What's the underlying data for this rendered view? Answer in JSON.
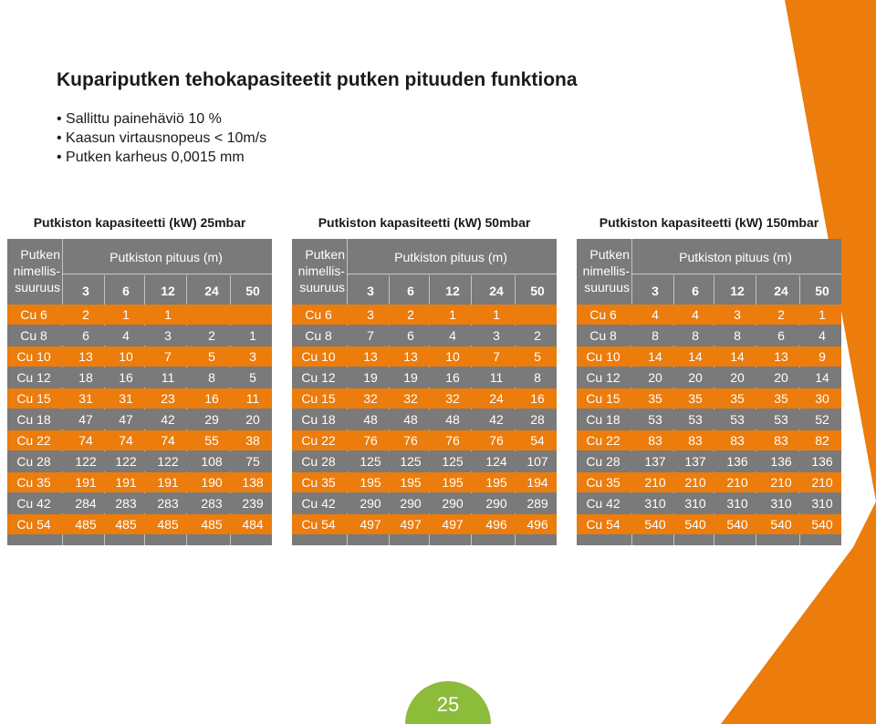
{
  "heading": "Kupariputken tehokapasiteetit putken pituuden funktiona",
  "bullets": [
    "Sallittu painehäviö 10 %",
    "Kaasun virtausnopeus < 10m/s",
    "Putken karheus 0,0015 mm"
  ],
  "colors": {
    "orange": "#ec7c0b",
    "gray": "#7a7a7a",
    "green": "#8dbb3a"
  },
  "page_number": "25",
  "tables": [
    {
      "title": "Putkiston kapasiteetti (kW) 25mbar",
      "name_header": [
        "Putken",
        "nimellis-",
        "suuruus"
      ],
      "length_header": "Putkiston pituus (m)",
      "lengths": [
        "3",
        "6",
        "12",
        "24",
        "50"
      ],
      "rows": [
        {
          "size": "Cu 6",
          "v": [
            "2",
            "1",
            "1",
            "",
            ""
          ]
        },
        {
          "size": "Cu 8",
          "v": [
            "6",
            "4",
            "3",
            "2",
            "1"
          ]
        },
        {
          "size": "Cu 10",
          "v": [
            "13",
            "10",
            "7",
            "5",
            "3"
          ]
        },
        {
          "size": "Cu 12",
          "v": [
            "18",
            "16",
            "11",
            "8",
            "5"
          ]
        },
        {
          "size": "Cu 15",
          "v": [
            "31",
            "31",
            "23",
            "16",
            "11"
          ]
        },
        {
          "size": "Cu 18",
          "v": [
            "47",
            "47",
            "42",
            "29",
            "20"
          ]
        },
        {
          "size": "Cu 22",
          "v": [
            "74",
            "74",
            "74",
            "55",
            "38"
          ]
        },
        {
          "size": "Cu 28",
          "v": [
            "122",
            "122",
            "122",
            "108",
            "75"
          ]
        },
        {
          "size": "Cu 35",
          "v": [
            "191",
            "191",
            "191",
            "190",
            "138"
          ]
        },
        {
          "size": "Cu 42",
          "v": [
            "284",
            "283",
            "283",
            "283",
            "239"
          ]
        },
        {
          "size": "Cu 54",
          "v": [
            "485",
            "485",
            "485",
            "485",
            "484"
          ]
        }
      ]
    },
    {
      "title": "Putkiston kapasiteetti (kW) 50mbar",
      "name_header": [
        "Putken",
        "nimellis-",
        "suuruus"
      ],
      "length_header": "Putkiston pituus (m)",
      "lengths": [
        "3",
        "6",
        "12",
        "24",
        "50"
      ],
      "rows": [
        {
          "size": "Cu 6",
          "v": [
            "3",
            "2",
            "1",
            "1",
            ""
          ]
        },
        {
          "size": "Cu 8",
          "v": [
            "7",
            "6",
            "4",
            "3",
            "2"
          ]
        },
        {
          "size": "Cu 10",
          "v": [
            "13",
            "13",
            "10",
            "7",
            "5"
          ]
        },
        {
          "size": "Cu 12",
          "v": [
            "19",
            "19",
            "16",
            "11",
            "8"
          ]
        },
        {
          "size": "Cu 15",
          "v": [
            "32",
            "32",
            "32",
            "24",
            "16"
          ]
        },
        {
          "size": "Cu 18",
          "v": [
            "48",
            "48",
            "48",
            "42",
            "28"
          ]
        },
        {
          "size": "Cu 22",
          "v": [
            "76",
            "76",
            "76",
            "76",
            "54"
          ]
        },
        {
          "size": "Cu 28",
          "v": [
            "125",
            "125",
            "125",
            "124",
            "107"
          ]
        },
        {
          "size": "Cu 35",
          "v": [
            "195",
            "195",
            "195",
            "195",
            "194"
          ]
        },
        {
          "size": "Cu 42",
          "v": [
            "290",
            "290",
            "290",
            "290",
            "289"
          ]
        },
        {
          "size": "Cu 54",
          "v": [
            "497",
            "497",
            "497",
            "496",
            "496"
          ]
        }
      ]
    },
    {
      "title": "Putkiston kapasiteetti (kW) 150mbar",
      "name_header": [
        "Putken",
        "nimellis-",
        "suuruus"
      ],
      "length_header": "Putkiston pituus (m)",
      "lengths": [
        "3",
        "6",
        "12",
        "24",
        "50"
      ],
      "rows": [
        {
          "size": "Cu 6",
          "v": [
            "4",
            "4",
            "3",
            "2",
            "1"
          ]
        },
        {
          "size": "Cu 8",
          "v": [
            "8",
            "8",
            "8",
            "6",
            "4"
          ]
        },
        {
          "size": "Cu 10",
          "v": [
            "14",
            "14",
            "14",
            "13",
            "9"
          ]
        },
        {
          "size": "Cu 12",
          "v": [
            "20",
            "20",
            "20",
            "20",
            "14"
          ]
        },
        {
          "size": "Cu 15",
          "v": [
            "35",
            "35",
            "35",
            "35",
            "30"
          ]
        },
        {
          "size": "Cu 18",
          "v": [
            "53",
            "53",
            "53",
            "53",
            "52"
          ]
        },
        {
          "size": "Cu 22",
          "v": [
            "83",
            "83",
            "83",
            "83",
            "82"
          ]
        },
        {
          "size": "Cu 28",
          "v": [
            "137",
            "137",
            "136",
            "136",
            "136"
          ]
        },
        {
          "size": "Cu 35",
          "v": [
            "210",
            "210",
            "210",
            "210",
            "210"
          ]
        },
        {
          "size": "Cu 42",
          "v": [
            "310",
            "310",
            "310",
            "310",
            "310"
          ]
        },
        {
          "size": "Cu 54",
          "v": [
            "540",
            "540",
            "540",
            "540",
            "540"
          ]
        }
      ]
    }
  ]
}
